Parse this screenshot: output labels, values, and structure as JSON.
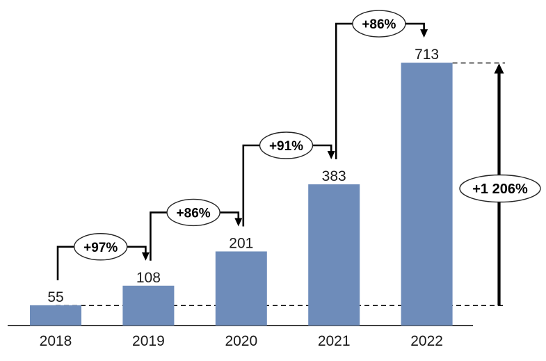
{
  "chart_data": {
    "type": "bar",
    "title": "",
    "xlabel": "",
    "ylabel": "",
    "categories": [
      "2018",
      "2019",
      "2020",
      "2021",
      "2022"
    ],
    "values": [
      55,
      108,
      201,
      383,
      713
    ],
    "data_labels": [
      "55",
      "108",
      "201",
      "383",
      "713"
    ],
    "yoy_growth_callouts": [
      {
        "from_year": "2018",
        "to_year": "2019",
        "label": "+97%"
      },
      {
        "from_year": "2019",
        "to_year": "2020",
        "label": "+86%"
      },
      {
        "from_year": "2020",
        "to_year": "2021",
        "label": "+91%"
      },
      {
        "from_year": "2021",
        "to_year": "2022",
        "label": "+86%"
      }
    ],
    "total_growth_callout": {
      "from_year": "2018",
      "to_year": "2022",
      "label": "+1 206%"
    },
    "grid": false,
    "legend": "none",
    "y_axis_ticks_visible": false,
    "reference_lines": [
      "dashed line at 2018 level (55)",
      "dashed line at 2022 level (713)"
    ],
    "colors": {
      "bar_fill": "#6E8CBA",
      "annotation_line": "#000000",
      "callout_fill": "#FFFFFF",
      "callout_border": "#262626",
      "callout_text": "#000000",
      "label_text": "#1A1A1A",
      "axis_line": "#000000",
      "background": "#FFFFFF"
    }
  }
}
